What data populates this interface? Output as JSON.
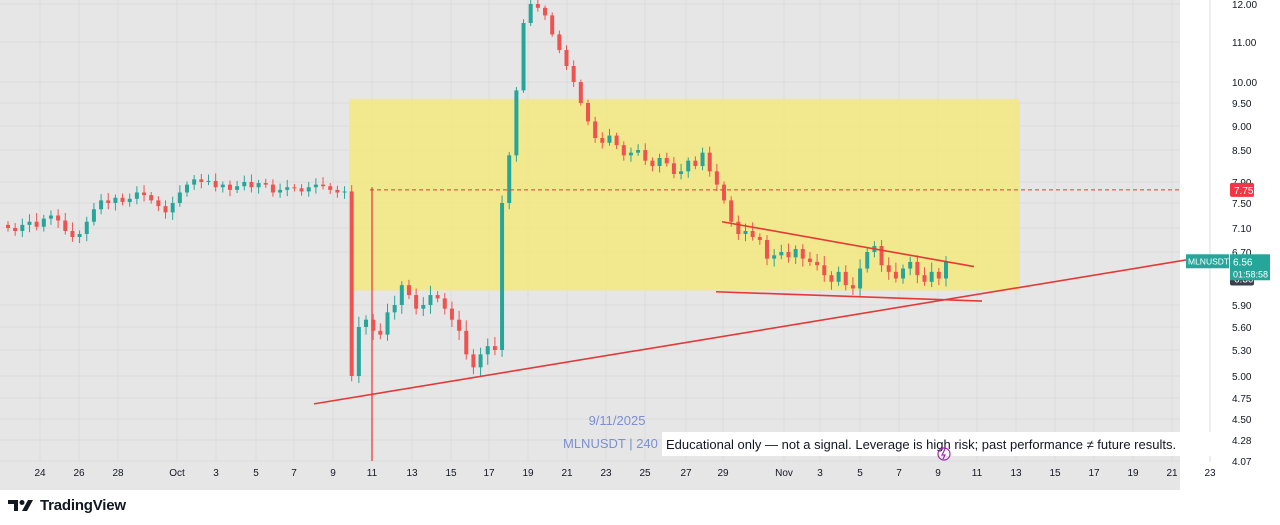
{
  "chart_data": {
    "type": "candlestick",
    "symbol_tag": "MLNUSDT",
    "last_price": "6.56",
    "countdown": "01:58:58",
    "price_marker_red": "7.75",
    "price_marker_dark": "6.30",
    "y_ticks": [
      "12.00",
      "11.00",
      "10.00",
      "9.50",
      "9.00",
      "8.50",
      "7.90",
      "7.50",
      "7.10",
      "6.70",
      "5.90",
      "5.60",
      "5.30",
      "5.00",
      "4.75",
      "4.50",
      "4.28",
      "4.07"
    ],
    "y_tick_values": [
      12.0,
      11.0,
      10.0,
      9.5,
      9.0,
      8.5,
      7.9,
      7.5,
      7.1,
      6.7,
      5.9,
      5.6,
      5.3,
      5.0,
      4.75,
      4.5,
      4.28,
      4.07
    ],
    "x_ticks": [
      "24",
      "26",
      "28",
      "Oct",
      "3",
      "5",
      "7",
      "9",
      "11",
      "13",
      "15",
      "17",
      "19",
      "21",
      "23",
      "25",
      "27",
      "29",
      "Nov",
      "3",
      "5",
      "7",
      "9",
      "11",
      "13",
      "15",
      "17",
      "19",
      "21",
      "23"
    ],
    "watermark_date": "9/11/2025",
    "watermark_symbol": "MLNUSDT | 240",
    "disclaimer": "Educational only — not a signal. Leverage is high risk; past performance ≠ future results.",
    "series_close": [
      7.1,
      7.05,
      7.15,
      7.2,
      7.12,
      7.25,
      7.3,
      7.22,
      7.05,
      6.95,
      7.0,
      7.2,
      7.4,
      7.55,
      7.5,
      7.6,
      7.52,
      7.58,
      7.7,
      7.65,
      7.55,
      7.45,
      7.35,
      7.5,
      7.7,
      7.85,
      7.95,
      7.9,
      7.92,
      7.8,
      7.85,
      7.75,
      7.82,
      7.9,
      7.8,
      7.88,
      7.85,
      7.7,
      7.75,
      7.8,
      7.78,
      7.72,
      7.8,
      7.85,
      7.82,
      7.75,
      7.7,
      7.72,
      5.0,
      5.6,
      5.7,
      5.55,
      5.5,
      5.8,
      5.9,
      6.2,
      6.05,
      5.85,
      5.9,
      6.05,
      6.0,
      5.85,
      5.7,
      5.55,
      5.25,
      5.1,
      5.25,
      5.35,
      5.3,
      7.5,
      8.4,
      9.8,
      11.5,
      12.0,
      11.9,
      11.7,
      11.2,
      10.8,
      10.4,
      10.0,
      9.5,
      9.1,
      8.75,
      8.65,
      8.8,
      8.6,
      8.4,
      8.45,
      8.5,
      8.3,
      8.2,
      8.35,
      8.25,
      8.05,
      8.1,
      8.3,
      8.2,
      8.45,
      8.1,
      7.85,
      7.55,
      7.2,
      7.0,
      7.05,
      6.95,
      6.9,
      6.6,
      6.65,
      6.7,
      6.62,
      6.75,
      6.6,
      6.55,
      6.5,
      6.35,
      6.25,
      6.4,
      6.2,
      6.15,
      6.45,
      6.7,
      6.8,
      6.5,
      6.4,
      6.3,
      6.45,
      6.55,
      6.35,
      6.25,
      6.4,
      6.3,
      6.56
    ],
    "hline_dashed_value": 7.75,
    "projection_box": {
      "top_value": 9.6,
      "bottom_value": 6.12,
      "from_tick": "11",
      "to_tick": "13"
    },
    "trendlines": [
      {
        "name": "rising-support",
        "from_tick": "7",
        "from_value": 4.68,
        "to_tick": "23",
        "to_value": 6.58
      },
      {
        "name": "descending-resistance",
        "from_tick": "29",
        "from_value": 7.2,
        "to_tick": "11",
        "to_value": 6.48
      },
      {
        "name": "flat-support",
        "from_tick": "29",
        "from_value": 6.1,
        "to_tick": "11",
        "to_value": 5.96
      }
    ],
    "colors": {
      "up": "#26a69a",
      "down": "#ef5350",
      "line": "#e53935",
      "box": "#f3e77c",
      "watermark": "#7b8fd1"
    }
  },
  "footer": {
    "brand": "TradingView",
    "logo_icon": "tradingview-logo-icon"
  }
}
